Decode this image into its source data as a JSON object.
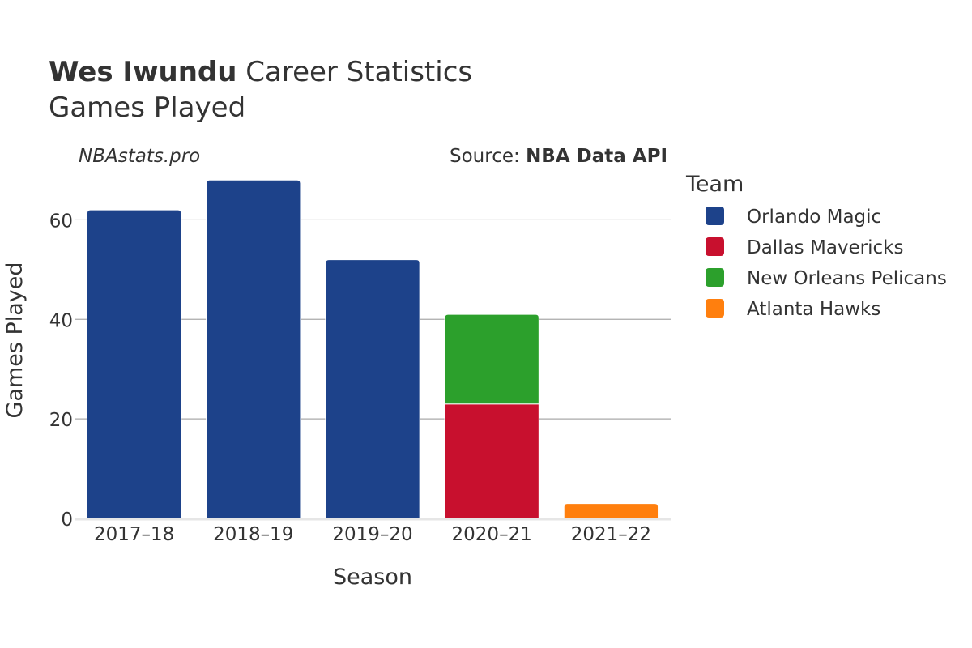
{
  "header": {
    "title_bold": "Wes Iwundu",
    "title_rest": " Career Statistics",
    "subtitle": "Games Played"
  },
  "credits": {
    "site": "NBAstats.pro",
    "source_prefix": "Source: ",
    "source_bold": "NBA Data API"
  },
  "chart_data": {
    "type": "bar",
    "stacked": true,
    "title": "Wes Iwundu Career Statistics",
    "subtitle": "Games Played",
    "xlabel": "Season",
    "ylabel": "Games Played",
    "categories": [
      "2017–18",
      "2018–19",
      "2019–20",
      "2020–21",
      "2021–22"
    ],
    "ylim": [
      0,
      70
    ],
    "yticks": [
      0,
      20,
      40,
      60
    ],
    "grid": true,
    "legend_title": "Team",
    "legend_position": "right",
    "series": [
      {
        "name": "Orlando Magic",
        "color": "#1d428a",
        "values": [
          62,
          68,
          52,
          0,
          0
        ]
      },
      {
        "name": "Dallas Mavericks",
        "color": "#c8102e",
        "values": [
          0,
          0,
          0,
          23,
          0
        ]
      },
      {
        "name": "New Orleans Pelicans",
        "color": "#2ca02c",
        "values": [
          0,
          0,
          0,
          18,
          0
        ]
      },
      {
        "name": "Atlanta Hawks",
        "color": "#ff7f0e",
        "values": [
          0,
          0,
          0,
          0,
          3
        ]
      }
    ]
  }
}
